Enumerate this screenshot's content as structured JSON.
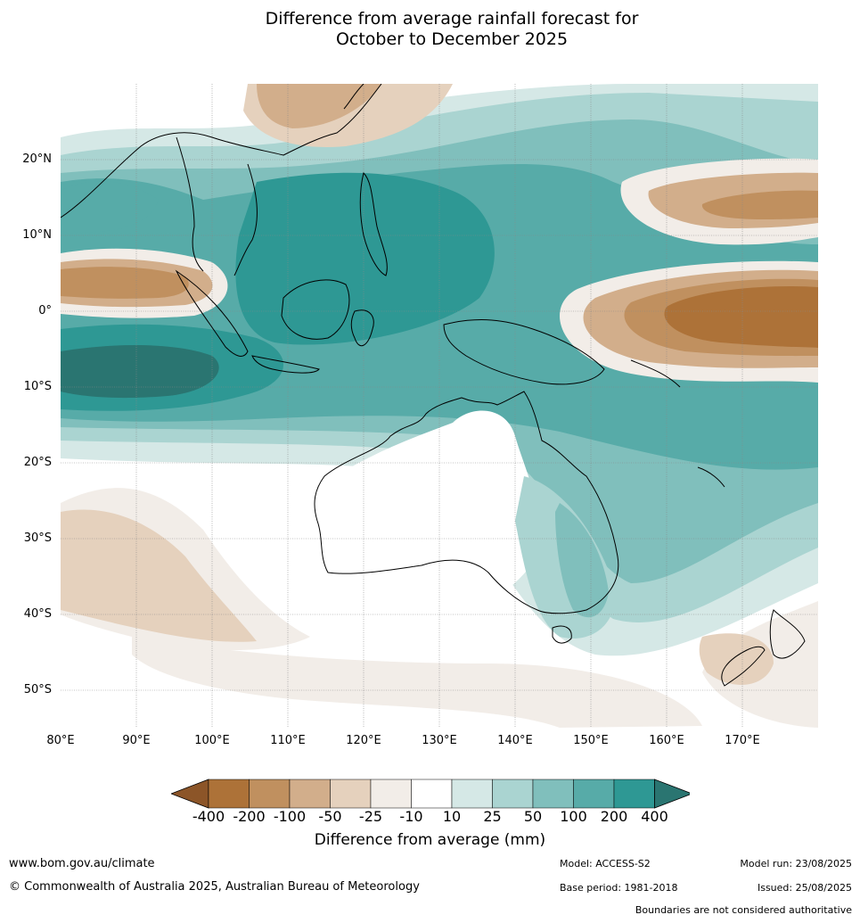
{
  "title_line1": "Difference from average rainfall forecast for",
  "title_line2": "October to December 2025",
  "map": {
    "lat_labels": [
      "20°N",
      "10°N",
      "0°",
      "10°S",
      "20°S",
      "30°S",
      "40°S",
      "50°S"
    ],
    "lon_labels": [
      "80°E",
      "90°E",
      "100°E",
      "110°E",
      "120°E",
      "130°E",
      "140°E",
      "150°E",
      "160°E",
      "170°E"
    ],
    "extent": {
      "lon_min": 80,
      "lon_max": 180,
      "lat_min": -55,
      "lat_max": 30
    }
  },
  "colorbar": {
    "ticks": [
      "-400",
      "-200",
      "-100",
      "-50",
      "-25",
      "-10",
      "10",
      "25",
      "50",
      "100",
      "200",
      "400"
    ],
    "colors": [
      "#8c5528",
      "#ad7238",
      "#c0905f",
      "#d2ae8b",
      "#e5d1bd",
      "#f2ede8",
      "#ffffff",
      "#d5e8e6",
      "#aad4d1",
      "#80bfbc",
      "#57aba8",
      "#2e9894",
      "#2a7571"
    ],
    "label": "Difference from average (mm)"
  },
  "footer": {
    "website": "www.bom.gov.au/climate",
    "copyright": "© Commonwealth of Australia 2025, Australian Bureau of Meteorology",
    "model": "Model: ACCESS-S2",
    "base_period": "Base period: 1981-2018",
    "model_run": "Model run: 23/08/2025",
    "issued": "Issued: 25/08/2025",
    "disclaimer": "Boundaries are not considered authoritative"
  }
}
